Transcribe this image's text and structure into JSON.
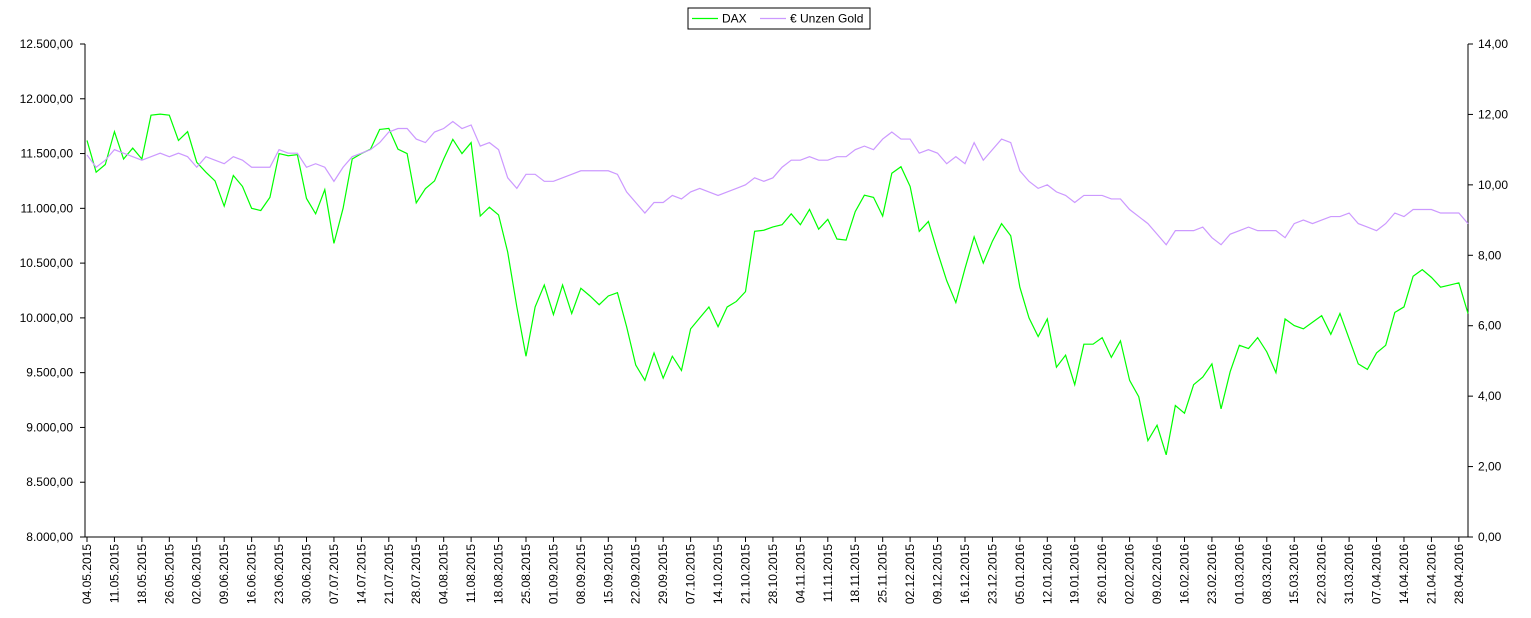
{
  "chart_data": {
    "type": "line",
    "categories": [
      "04.05.2015",
      null,
      null,
      "11.05.2015",
      null,
      null,
      "18.05.2015",
      null,
      null,
      "26.05.2015",
      null,
      null,
      "02.06.2015",
      null,
      null,
      "09.06.2015",
      null,
      null,
      "16.06.2015",
      null,
      null,
      "23.06.2015",
      null,
      null,
      "30.06.2015",
      null,
      null,
      "07.07.2015",
      null,
      null,
      "14.07.2015",
      null,
      null,
      "21.07.2015",
      null,
      null,
      "28.07.2015",
      null,
      null,
      "04.08.2015",
      null,
      null,
      "11.08.2015",
      null,
      null,
      "18.08.2015",
      null,
      null,
      "25.08.2015",
      null,
      null,
      "01.09.2015",
      null,
      null,
      "08.09.2015",
      null,
      null,
      "15.09.2015",
      null,
      null,
      "22.09.2015",
      null,
      null,
      "29.09.2015",
      null,
      null,
      "07.10.2015",
      null,
      null,
      "14.10.2015",
      null,
      null,
      "21.10.2015",
      null,
      null,
      "28.10.2015",
      null,
      null,
      "04.11.2015",
      null,
      null,
      "11.11.2015",
      null,
      null,
      "18.11.2015",
      null,
      null,
      "25.11.2015",
      null,
      null,
      "02.12.2015",
      null,
      null,
      "09.12.2015",
      null,
      null,
      "16.12.2015",
      null,
      null,
      "23.12.2015",
      null,
      null,
      "05.01.2016",
      null,
      null,
      "12.01.2016",
      null,
      null,
      "19.01.2016",
      null,
      null,
      "26.01.2016",
      null,
      null,
      "02.02.2016",
      null,
      null,
      "09.02.2016",
      null,
      null,
      "16.02.2016",
      null,
      null,
      "23.02.2016",
      null,
      null,
      "01.03.2016",
      null,
      null,
      "08.03.2016",
      null,
      null,
      "15.03.2016",
      null,
      null,
      "22.03.2016",
      null,
      null,
      "31.03.2016",
      null,
      null,
      "07.04.2016",
      null,
      null,
      "14.04.2016",
      null,
      null,
      "21.04.2016",
      null,
      null,
      "28.04.2016",
      null
    ],
    "series": [
      {
        "name": "DAX",
        "color": "#00ff00",
        "axis": "y",
        "values": [
          11620,
          11330,
          11400,
          11700,
          11450,
          11550,
          11450,
          11850,
          11860,
          11850,
          11620,
          11700,
          11420,
          11330,
          11250,
          11020,
          11300,
          11200,
          11000,
          10980,
          11100,
          11500,
          11480,
          11490,
          11090,
          10950,
          11170,
          10680,
          11000,
          11450,
          11500,
          11540,
          11720,
          11730,
          11540,
          11500,
          11050,
          11180,
          11250,
          11450,
          11630,
          11500,
          11600,
          10930,
          11010,
          10940,
          10600,
          10100,
          9650,
          10100,
          10300,
          10030,
          10300,
          10040,
          10270,
          10200,
          10120,
          10200,
          10230,
          9920,
          9570,
          9430,
          9680,
          9450,
          9650,
          9520,
          9900,
          10000,
          10100,
          9920,
          10100,
          10150,
          10240,
          10790,
          10800,
          10830,
          10850,
          10950,
          10850,
          10990,
          10810,
          10900,
          10720,
          10710,
          10970,
          11120,
          11100,
          10930,
          11320,
          11380,
          11200,
          10790,
          10880,
          10600,
          10340,
          10140,
          10450,
          10740,
          10500,
          10700,
          10860,
          10750,
          10280,
          10000,
          9830,
          9990,
          9550,
          9660,
          9390,
          9760,
          9760,
          9820,
          9640,
          9790,
          9430,
          9280,
          8880,
          9020,
          8750,
          9200,
          9130,
          9390,
          9460,
          9580,
          9170,
          9510,
          9750,
          9720,
          9820,
          9690,
          9500,
          9990,
          9930,
          9900,
          9960,
          10020,
          9850,
          10040,
          9810,
          9580,
          9530,
          9680,
          9750,
          10050,
          10100,
          10380,
          10440,
          10370,
          10280,
          10300,
          10320,
          10040
        ]
      },
      {
        "name": "€ Unzen Gold",
        "color": "#cc99ff",
        "axis": "y2",
        "values": [
          10.85,
          10.5,
          10.7,
          11.0,
          10.9,
          10.8,
          10.7,
          10.8,
          10.9,
          10.8,
          10.9,
          10.8,
          10.5,
          10.8,
          10.7,
          10.6,
          10.8,
          10.7,
          10.5,
          10.5,
          10.5,
          11.0,
          10.9,
          10.9,
          10.5,
          10.6,
          10.5,
          10.1,
          10.5,
          10.8,
          10.9,
          11.0,
          11.2,
          11.5,
          11.6,
          11.6,
          11.3,
          11.2,
          11.5,
          11.6,
          11.8,
          11.6,
          11.7,
          11.1,
          11.2,
          11.0,
          10.2,
          9.9,
          10.3,
          10.3,
          10.1,
          10.1,
          10.2,
          10.3,
          10.4,
          10.4,
          10.4,
          10.4,
          10.3,
          9.8,
          9.5,
          9.2,
          9.5,
          9.5,
          9.7,
          9.6,
          9.8,
          9.9,
          9.8,
          9.7,
          9.8,
          9.9,
          10.0,
          10.2,
          10.1,
          10.2,
          10.5,
          10.7,
          10.7,
          10.8,
          10.7,
          10.7,
          10.8,
          10.8,
          11.0,
          11.1,
          11.0,
          11.3,
          11.5,
          11.3,
          11.3,
          10.9,
          11.0,
          10.9,
          10.6,
          10.8,
          10.6,
          11.2,
          10.7,
          11.0,
          11.3,
          11.2,
          10.4,
          10.1,
          9.9,
          10.0,
          9.8,
          9.7,
          9.5,
          9.7,
          9.7,
          9.7,
          9.6,
          9.6,
          9.3,
          9.1,
          8.9,
          8.6,
          8.3,
          8.7,
          8.7,
          8.7,
          8.8,
          8.5,
          8.3,
          8.6,
          8.7,
          8.8,
          8.7,
          8.7,
          8.7,
          8.5,
          8.9,
          9.0,
          8.9,
          9.0,
          9.1,
          9.1,
          9.2,
          8.9,
          8.8,
          8.7,
          8.9,
          9.2,
          9.1,
          9.3,
          9.3,
          9.3,
          9.2,
          9.2,
          9.2,
          8.9
        ]
      }
    ],
    "ylim": [
      8000,
      12500
    ],
    "yticks": [
      {
        "value": 8000,
        "label": "8.000,00"
      },
      {
        "value": 8500,
        "label": "8.500,00"
      },
      {
        "value": 9000,
        "label": "9.000,00"
      },
      {
        "value": 9500,
        "label": "9.500,00"
      },
      {
        "value": 10000,
        "label": "10.000,00"
      },
      {
        "value": 10500,
        "label": "10.500,00"
      },
      {
        "value": 11000,
        "label": "11.000,00"
      },
      {
        "value": 11500,
        "label": "11.500,00"
      },
      {
        "value": 12000,
        "label": "12.000,00"
      },
      {
        "value": 12500,
        "label": "12.500,00"
      }
    ],
    "y2lim": [
      0,
      14
    ],
    "y2ticks": [
      {
        "value": 0,
        "label": "0,00"
      },
      {
        "value": 2,
        "label": "2,00"
      },
      {
        "value": 4,
        "label": "4,00"
      },
      {
        "value": 6,
        "label": "6,00"
      },
      {
        "value": 8,
        "label": "8,00"
      },
      {
        "value": 10,
        "label": "10,00"
      },
      {
        "value": 12,
        "label": "12,00"
      },
      {
        "value": 14,
        "label": "14,00"
      }
    ],
    "legend": "top"
  }
}
